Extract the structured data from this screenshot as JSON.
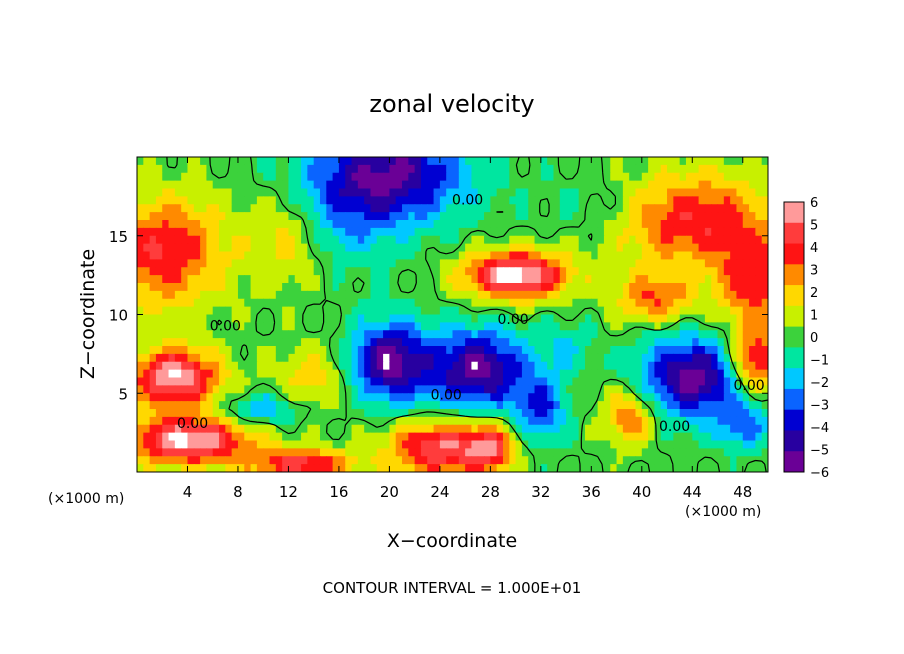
{
  "chart_data": {
    "type": "heatmap",
    "title": "zonal velocity",
    "xlabel": "X−coordinate",
    "ylabel": "Z−coordinate",
    "x_unit_left": "(×1000 m)",
    "x_unit_right": "(×1000 m)",
    "xlim": [
      0,
      50
    ],
    "ylim": [
      0,
      20
    ],
    "xticks": [
      4,
      8,
      12,
      16,
      20,
      24,
      28,
      32,
      36,
      40,
      44,
      48
    ],
    "yticks": [
      5,
      10,
      15
    ],
    "colorbar": {
      "levels": [
        6,
        5,
        4,
        3,
        2,
        1,
        0,
        -1,
        -2,
        -3,
        -4,
        -5,
        -6
      ],
      "labels": [
        "6",
        "5",
        "4",
        "3",
        "2",
        "1",
        "0",
        "−1",
        "−2",
        "−3",
        "−4",
        "−5",
        "−6"
      ],
      "colors": [
        "#ff9a9a",
        "#ff3c3c",
        "#ff1414",
        "#ff8a00",
        "#ffd800",
        "#c8f000",
        "#3cd23c",
        "#00e6a0",
        "#00c8ff",
        "#0a64ff",
        "#0000d2",
        "#2800a0",
        "#6a0096"
      ]
    },
    "contour_labels": [
      {
        "text": "0.00",
        "x": 7.0,
        "y": 9.0
      },
      {
        "text": "0.00",
        "x": 26.2,
        "y": 17.0
      },
      {
        "text": "0.00",
        "x": 29.8,
        "y": 9.4
      },
      {
        "text": "0.00",
        "x": 24.5,
        "y": 4.6
      },
      {
        "text": "0.00",
        "x": 4.4,
        "y": 2.8
      },
      {
        "text": "0.00",
        "x": 42.6,
        "y": 2.6
      },
      {
        "text": "0.00",
        "x": 48.5,
        "y": 5.2
      }
    ],
    "footer": "CONTOUR INTERVAL = 1.000E+01"
  }
}
